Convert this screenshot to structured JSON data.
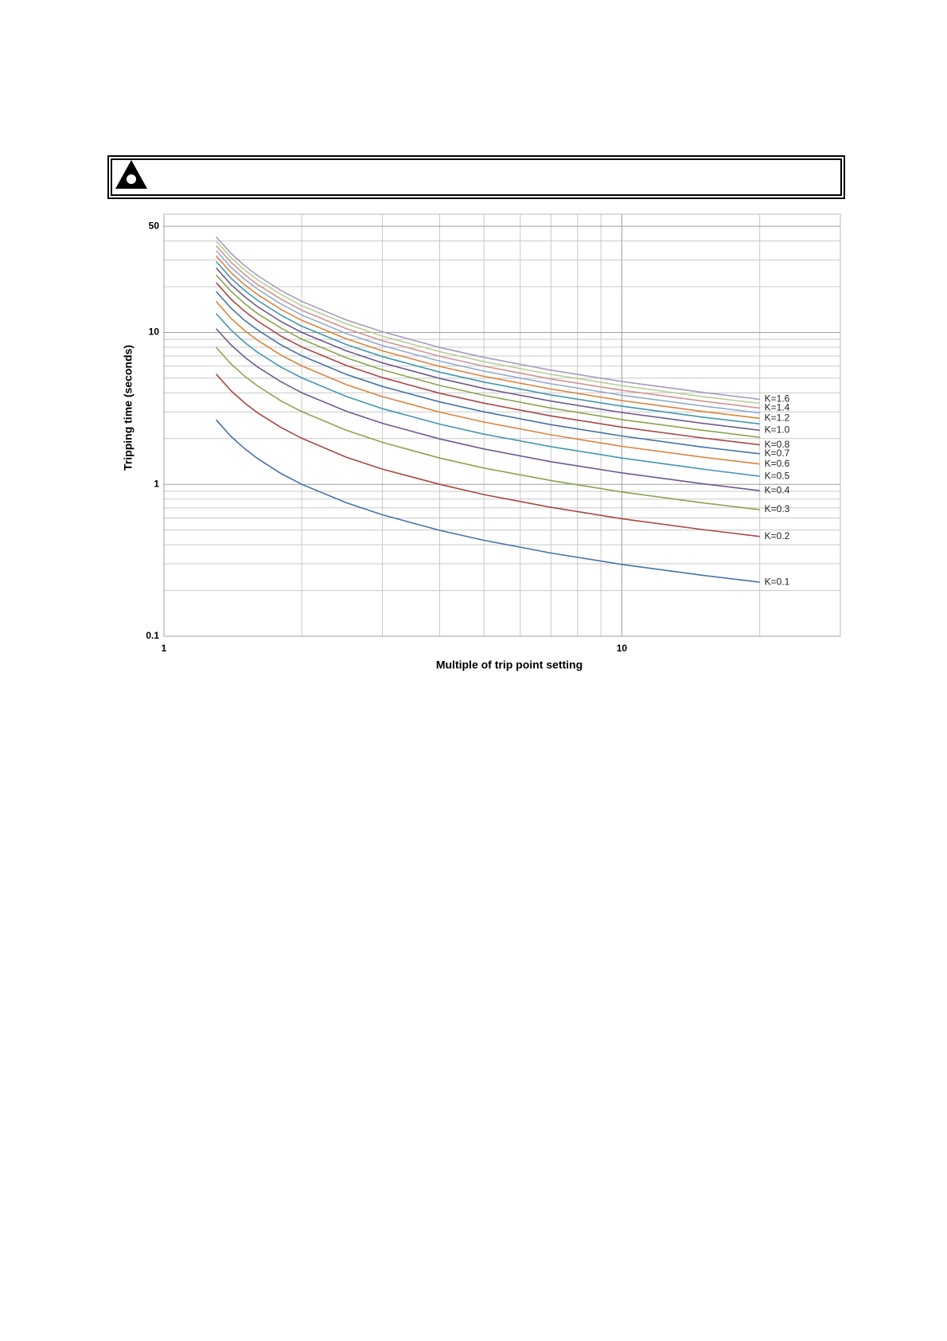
{
  "chart_data": {
    "type": "line",
    "xlabel": "Multiple of trip point setting",
    "ylabel": "Tripping time (seconds)",
    "xscale": "log",
    "yscale": "log",
    "grid": true,
    "xlim": [
      1,
      30
    ],
    "ylim": [
      0.1,
      60
    ],
    "xticks": [
      1,
      10
    ],
    "yticks": [
      0.1,
      1,
      10,
      50
    ],
    "xgrid": [
      2,
      3,
      4,
      5,
      6,
      7,
      8,
      9,
      20
    ],
    "ygrid": [
      0.2,
      0.3,
      0.4,
      0.5,
      0.6,
      0.7,
      0.8,
      0.9,
      2,
      3,
      4,
      5,
      6,
      7,
      8,
      9,
      20,
      30,
      40
    ],
    "x": [
      1.3,
      1.4,
      1.5,
      1.6,
      1.8,
      2,
      2.5,
      3,
      4,
      5,
      7,
      10,
      15,
      20
    ],
    "series": [
      {
        "name": "K=0.1",
        "color": "#4572A7",
        "values": [
          2.66,
          2.07,
          1.72,
          1.48,
          1.18,
          1.0,
          0.757,
          0.63,
          0.498,
          0.428,
          0.353,
          0.297,
          0.252,
          0.227
        ]
      },
      {
        "name": "K=0.2",
        "color": "#AA4643",
        "values": [
          5.32,
          4.14,
          3.44,
          2.96,
          2.37,
          2.01,
          1.51,
          1.26,
          1.0,
          0.856,
          0.706,
          0.594,
          0.504,
          0.454
        ]
      },
      {
        "name": "K=0.3",
        "color": "#89A54E",
        "values": [
          7.98,
          6.22,
          5.16,
          4.45,
          3.55,
          3.01,
          2.27,
          1.89,
          1.49,
          1.28,
          1.06,
          0.891,
          0.756,
          0.681
        ]
      },
      {
        "name": "K=0.4",
        "color": "#71588F",
        "values": [
          10.6,
          8.29,
          6.88,
          5.93,
          4.74,
          4.01,
          3.03,
          2.52,
          1.99,
          1.71,
          1.41,
          1.19,
          1.01,
          0.908
        ]
      },
      {
        "name": "K=0.5",
        "color": "#4198AF",
        "values": [
          13.3,
          10.4,
          8.6,
          7.41,
          5.92,
          5.02,
          3.79,
          3.15,
          2.49,
          2.14,
          1.77,
          1.49,
          1.26,
          1.13
        ]
      },
      {
        "name": "K=0.6",
        "color": "#DB843D",
        "values": [
          16.0,
          12.4,
          10.3,
          8.89,
          7.1,
          6.02,
          4.54,
          3.78,
          2.99,
          2.57,
          2.12,
          1.78,
          1.51,
          1.36
        ]
      },
      {
        "name": "K=0.7",
        "color": "#4572A7",
        "values": [
          18.6,
          14.5,
          12.0,
          10.4,
          8.29,
          7.02,
          5.3,
          4.41,
          3.49,
          3.0,
          2.47,
          2.08,
          1.76,
          1.59
        ]
      },
      {
        "name": "K=0.8",
        "color": "#AA4643",
        "values": [
          21.3,
          16.6,
          13.8,
          11.9,
          9.47,
          8.02,
          6.06,
          5.04,
          3.98,
          3.42,
          2.82,
          2.38,
          2.02,
          1.82
        ]
      },
      {
        "color": "#89A54E",
        "values": [
          23.9,
          18.7,
          15.5,
          13.3,
          10.7,
          9.03,
          6.81,
          5.67,
          4.48,
          3.85,
          3.18,
          2.67,
          2.27,
          2.04
        ]
      },
      {
        "name": "K=1.0",
        "color": "#71588F",
        "values": [
          26.6,
          20.7,
          17.2,
          14.8,
          11.8,
          10.0,
          7.57,
          6.3,
          4.98,
          4.28,
          3.53,
          2.97,
          2.52,
          2.27
        ]
      },
      {
        "color": "#4198AF",
        "values": [
          29.3,
          22.8,
          18.9,
          16.3,
          13.0,
          11.0,
          8.33,
          6.93,
          5.48,
          4.71,
          3.88,
          3.27,
          2.77,
          2.5
        ]
      },
      {
        "name": "K=1.2",
        "color": "#DB843D",
        "values": [
          31.9,
          24.8,
          20.6,
          17.8,
          14.2,
          12.0,
          9.08,
          7.56,
          5.98,
          5.14,
          4.24,
          3.56,
          3.02,
          2.72
        ]
      },
      {
        "color": "#93A9CF",
        "values": [
          34.6,
          26.9,
          22.4,
          19.3,
          15.4,
          13.0,
          9.84,
          8.19,
          6.47,
          5.56,
          4.59,
          3.86,
          3.28,
          2.95
        ]
      },
      {
        "name": "K=1.4",
        "color": "#D19392",
        "values": [
          37.2,
          29.0,
          24.1,
          20.7,
          16.6,
          14.0,
          10.6,
          8.82,
          6.97,
          5.99,
          4.94,
          4.16,
          3.53,
          3.18
        ]
      },
      {
        "color": "#B9CD96",
        "values": [
          39.9,
          31.1,
          25.8,
          22.2,
          17.8,
          15.0,
          11.4,
          9.45,
          7.47,
          6.42,
          5.3,
          4.46,
          3.78,
          3.41
        ]
      },
      {
        "name": "K=1.6",
        "color": "#A99BBD",
        "values": [
          42.6,
          33.2,
          27.5,
          23.7,
          18.9,
          16.0,
          12.1,
          10.1,
          7.97,
          6.85,
          5.65,
          4.75,
          4.03,
          3.63
        ]
      }
    ]
  }
}
